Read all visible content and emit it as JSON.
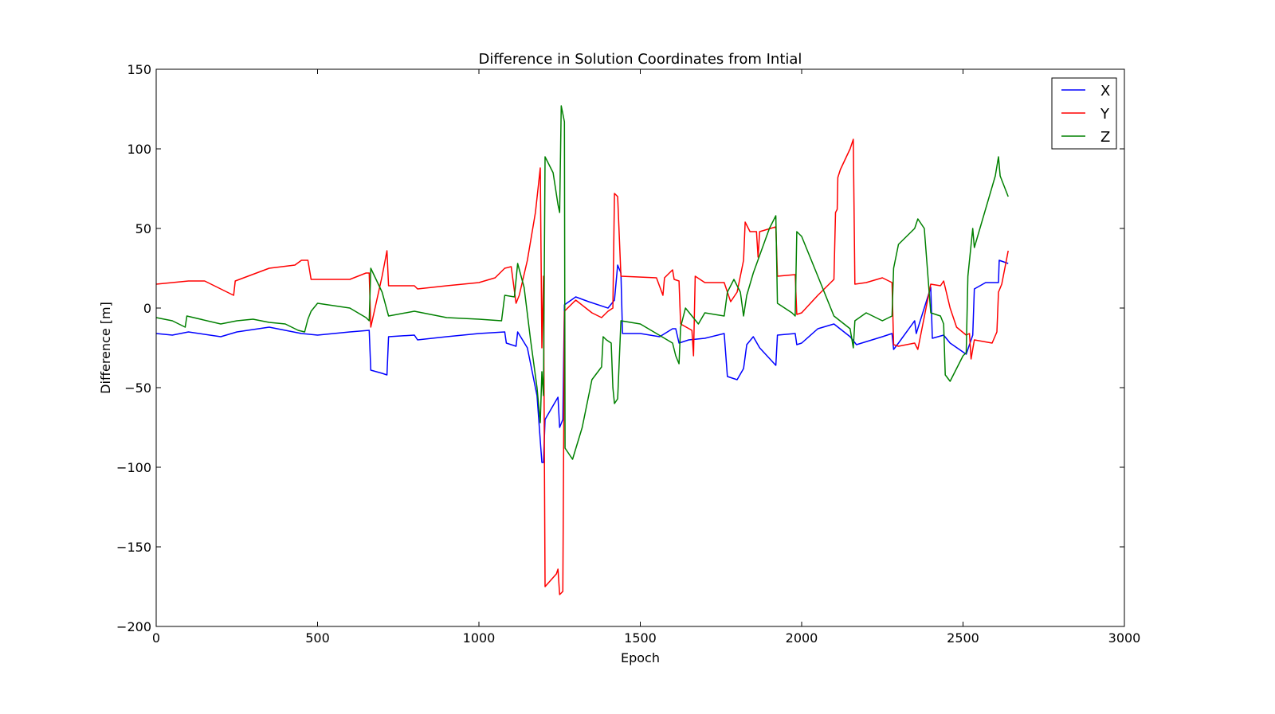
{
  "chart_data": {
    "type": "line",
    "title": "Difference in Solution Coordinates from Intial",
    "xlabel": "Epoch",
    "ylabel": "Difference [m]",
    "xlim": [
      0,
      3000
    ],
    "ylim": [
      -200,
      150
    ],
    "xticks": [
      0,
      500,
      1000,
      1500,
      2000,
      2500,
      3000
    ],
    "yticks": [
      150,
      100,
      50,
      0,
      -50,
      -100,
      -150,
      -200
    ],
    "ytick_labels": [
      "150",
      "100",
      "50",
      "0",
      "−50",
      "−100",
      "−150",
      "−200"
    ],
    "grid": false,
    "legend_position": "top-right",
    "series": [
      {
        "name": "X",
        "color": "#0000ff",
        "points": [
          [
            0,
            -16
          ],
          [
            50,
            -17
          ],
          [
            100,
            -15
          ],
          [
            200,
            -18
          ],
          [
            250,
            -15
          ],
          [
            350,
            -12
          ],
          [
            450,
            -16
          ],
          [
            500,
            -17
          ],
          [
            600,
            -15
          ],
          [
            660,
            -14
          ],
          [
            665,
            -39
          ],
          [
            700,
            -41
          ],
          [
            715,
            -42
          ],
          [
            720,
            -18
          ],
          [
            800,
            -17
          ],
          [
            810,
            -20
          ],
          [
            900,
            -18
          ],
          [
            1000,
            -16
          ],
          [
            1080,
            -15
          ],
          [
            1085,
            -22
          ],
          [
            1115,
            -24
          ],
          [
            1120,
            -15
          ],
          [
            1150,
            -25
          ],
          [
            1180,
            -55
          ],
          [
            1195,
            -97
          ],
          [
            1200,
            -97
          ],
          [
            1205,
            -70
          ],
          [
            1245,
            -56
          ],
          [
            1250,
            -75
          ],
          [
            1260,
            -70
          ],
          [
            1265,
            2
          ],
          [
            1300,
            7
          ],
          [
            1340,
            4
          ],
          [
            1400,
            0
          ],
          [
            1420,
            5
          ],
          [
            1430,
            27
          ],
          [
            1440,
            22
          ],
          [
            1445,
            -16
          ],
          [
            1500,
            -16
          ],
          [
            1560,
            -18
          ],
          [
            1600,
            -13
          ],
          [
            1610,
            -13
          ],
          [
            1620,
            -22
          ],
          [
            1650,
            -20
          ],
          [
            1700,
            -19
          ],
          [
            1760,
            -16
          ],
          [
            1770,
            -43
          ],
          [
            1800,
            -45
          ],
          [
            1820,
            -38
          ],
          [
            1830,
            -23
          ],
          [
            1850,
            -18
          ],
          [
            1870,
            -25
          ],
          [
            1920,
            -36
          ],
          [
            1925,
            -17
          ],
          [
            1980,
            -16
          ],
          [
            1985,
            -23
          ],
          [
            2000,
            -22
          ],
          [
            2050,
            -13
          ],
          [
            2100,
            -10
          ],
          [
            2150,
            -18
          ],
          [
            2170,
            -23
          ],
          [
            2250,
            -18
          ],
          [
            2280,
            -16
          ],
          [
            2285,
            -26
          ],
          [
            2300,
            -22
          ],
          [
            2350,
            -8
          ],
          [
            2355,
            -16
          ],
          [
            2400,
            13
          ],
          [
            2405,
            -19
          ],
          [
            2440,
            -17
          ],
          [
            2460,
            -22
          ],
          [
            2510,
            -29
          ],
          [
            2530,
            -17
          ],
          [
            2535,
            12
          ],
          [
            2570,
            16
          ],
          [
            2610,
            16
          ],
          [
            2612,
            30
          ],
          [
            2640,
            28
          ]
        ]
      },
      {
        "name": "Y",
        "color": "#ff0000",
        "points": [
          [
            0,
            15
          ],
          [
            100,
            17
          ],
          [
            150,
            17
          ],
          [
            230,
            9
          ],
          [
            240,
            8
          ],
          [
            245,
            17
          ],
          [
            350,
            25
          ],
          [
            430,
            27
          ],
          [
            450,
            30
          ],
          [
            470,
            30
          ],
          [
            480,
            18
          ],
          [
            600,
            18
          ],
          [
            650,
            22
          ],
          [
            660,
            22
          ],
          [
            665,
            -12
          ],
          [
            700,
            20
          ],
          [
            715,
            36
          ],
          [
            720,
            14
          ],
          [
            800,
            14
          ],
          [
            810,
            12
          ],
          [
            900,
            14
          ],
          [
            1000,
            16
          ],
          [
            1050,
            19
          ],
          [
            1080,
            25
          ],
          [
            1100,
            26
          ],
          [
            1115,
            3
          ],
          [
            1125,
            8
          ],
          [
            1150,
            30
          ],
          [
            1175,
            60
          ],
          [
            1190,
            88
          ],
          [
            1195,
            -25
          ],
          [
            1200,
            20
          ],
          [
            1205,
            -175
          ],
          [
            1240,
            -167
          ],
          [
            1245,
            -164
          ],
          [
            1250,
            -180
          ],
          [
            1260,
            -178
          ],
          [
            1265,
            -2
          ],
          [
            1300,
            5
          ],
          [
            1350,
            -3
          ],
          [
            1380,
            -6
          ],
          [
            1400,
            -2
          ],
          [
            1415,
            0
          ],
          [
            1420,
            72
          ],
          [
            1430,
            70
          ],
          [
            1440,
            20
          ],
          [
            1550,
            19
          ],
          [
            1570,
            8
          ],
          [
            1575,
            19
          ],
          [
            1600,
            24
          ],
          [
            1605,
            18
          ],
          [
            1620,
            17
          ],
          [
            1625,
            -10
          ],
          [
            1660,
            -14
          ],
          [
            1665,
            -30
          ],
          [
            1670,
            20
          ],
          [
            1700,
            16
          ],
          [
            1760,
            16
          ],
          [
            1780,
            4
          ],
          [
            1800,
            10
          ],
          [
            1820,
            30
          ],
          [
            1825,
            54
          ],
          [
            1840,
            48
          ],
          [
            1860,
            48
          ],
          [
            1865,
            32
          ],
          [
            1870,
            48
          ],
          [
            1920,
            51
          ],
          [
            1925,
            20
          ],
          [
            1980,
            21
          ],
          [
            1985,
            -4
          ],
          [
            2000,
            -3
          ],
          [
            2050,
            8
          ],
          [
            2100,
            18
          ],
          [
            2105,
            60
          ],
          [
            2110,
            62
          ],
          [
            2112,
            82
          ],
          [
            2120,
            87
          ],
          [
            2150,
            100
          ],
          [
            2160,
            106
          ],
          [
            2165,
            15
          ],
          [
            2200,
            16
          ],
          [
            2250,
            19
          ],
          [
            2280,
            16
          ],
          [
            2285,
            -23
          ],
          [
            2300,
            -24
          ],
          [
            2350,
            -22
          ],
          [
            2360,
            -26
          ],
          [
            2400,
            15
          ],
          [
            2430,
            14
          ],
          [
            2440,
            17
          ],
          [
            2460,
            0
          ],
          [
            2480,
            -12
          ],
          [
            2510,
            -17
          ],
          [
            2520,
            -16
          ],
          [
            2525,
            -32
          ],
          [
            2535,
            -20
          ],
          [
            2590,
            -22
          ],
          [
            2605,
            -15
          ],
          [
            2610,
            10
          ],
          [
            2620,
            15
          ],
          [
            2640,
            36
          ]
        ]
      },
      {
        "name": "Z",
        "color": "#008000",
        "points": [
          [
            0,
            -6
          ],
          [
            50,
            -8
          ],
          [
            90,
            -12
          ],
          [
            95,
            -5
          ],
          [
            200,
            -10
          ],
          [
            250,
            -8
          ],
          [
            300,
            -7
          ],
          [
            350,
            -9
          ],
          [
            400,
            -10
          ],
          [
            440,
            -14
          ],
          [
            460,
            -15
          ],
          [
            470,
            -7
          ],
          [
            480,
            -2
          ],
          [
            500,
            3
          ],
          [
            600,
            0
          ],
          [
            650,
            -6
          ],
          [
            660,
            -8
          ],
          [
            665,
            25
          ],
          [
            700,
            10
          ],
          [
            720,
            -5
          ],
          [
            800,
            -2
          ],
          [
            900,
            -6
          ],
          [
            1000,
            -7
          ],
          [
            1070,
            -8
          ],
          [
            1080,
            8
          ],
          [
            1110,
            7
          ],
          [
            1120,
            28
          ],
          [
            1140,
            13
          ],
          [
            1160,
            -20
          ],
          [
            1180,
            -50
          ],
          [
            1190,
            -72
          ],
          [
            1195,
            -40
          ],
          [
            1200,
            -55
          ],
          [
            1205,
            95
          ],
          [
            1230,
            85
          ],
          [
            1245,
            65
          ],
          [
            1250,
            60
          ],
          [
            1255,
            127
          ],
          [
            1265,
            117
          ],
          [
            1267,
            -88
          ],
          [
            1290,
            -95
          ],
          [
            1320,
            -75
          ],
          [
            1350,
            -45
          ],
          [
            1380,
            -37
          ],
          [
            1385,
            -18
          ],
          [
            1395,
            -20
          ],
          [
            1410,
            -22
          ],
          [
            1415,
            -50
          ],
          [
            1420,
            -60
          ],
          [
            1430,
            -57
          ],
          [
            1440,
            -8
          ],
          [
            1500,
            -10
          ],
          [
            1550,
            -16
          ],
          [
            1600,
            -22
          ],
          [
            1610,
            -30
          ],
          [
            1620,
            -35
          ],
          [
            1625,
            -12
          ],
          [
            1640,
            0
          ],
          [
            1660,
            -5
          ],
          [
            1680,
            -10
          ],
          [
            1700,
            -3
          ],
          [
            1760,
            -5
          ],
          [
            1770,
            10
          ],
          [
            1790,
            18
          ],
          [
            1810,
            10
          ],
          [
            1820,
            -5
          ],
          [
            1830,
            8
          ],
          [
            1850,
            22
          ],
          [
            1900,
            50
          ],
          [
            1920,
            58
          ],
          [
            1925,
            3
          ],
          [
            1970,
            -3
          ],
          [
            1980,
            -5
          ],
          [
            1985,
            48
          ],
          [
            2000,
            45
          ],
          [
            2050,
            20
          ],
          [
            2100,
            -5
          ],
          [
            2150,
            -13
          ],
          [
            2160,
            -25
          ],
          [
            2165,
            -8
          ],
          [
            2200,
            -3
          ],
          [
            2250,
            -8
          ],
          [
            2280,
            -5
          ],
          [
            2285,
            25
          ],
          [
            2300,
            40
          ],
          [
            2350,
            50
          ],
          [
            2360,
            56
          ],
          [
            2380,
            50
          ],
          [
            2400,
            -3
          ],
          [
            2430,
            -5
          ],
          [
            2440,
            -10
          ],
          [
            2445,
            -42
          ],
          [
            2460,
            -46
          ],
          [
            2500,
            -30
          ],
          [
            2510,
            -28
          ],
          [
            2515,
            20
          ],
          [
            2530,
            50
          ],
          [
            2535,
            38
          ],
          [
            2600,
            83
          ],
          [
            2610,
            95
          ],
          [
            2615,
            83
          ],
          [
            2640,
            70
          ]
        ]
      }
    ]
  }
}
